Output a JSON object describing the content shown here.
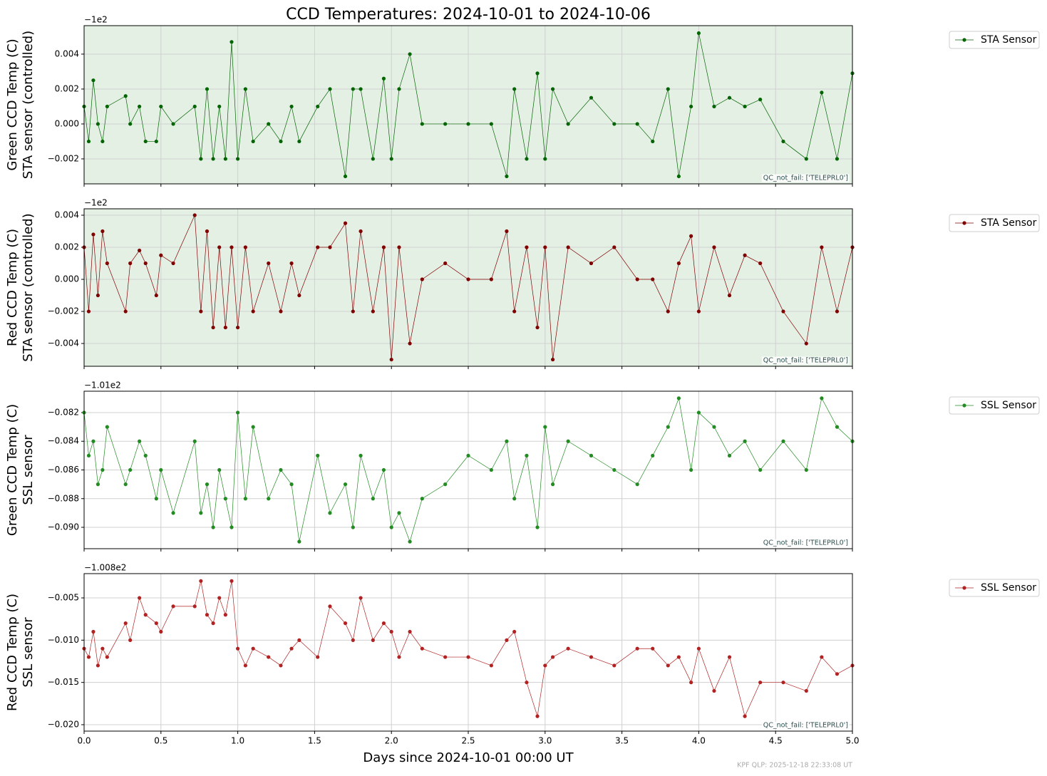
{
  "title": "CCD Temperatures: 2024-10-01 to 2024-10-06",
  "footer": "KPF QLP: 2025-12-18 22:33:08 UT",
  "chart_data": [
    {
      "type": "line",
      "ylabel": [
        "Green CCD Temp (C)",
        "STA sensor (controlled)"
      ],
      "y_offset_label": "−1e2",
      "annotation": "QC_not_fail: ['TELEPRL0']",
      "facecolor": "#e5f0e5",
      "grid": true,
      "legend": "outside-right",
      "x": [
        0.0,
        0.03,
        0.06,
        0.09,
        0.12,
        0.15,
        0.27,
        0.3,
        0.36,
        0.4,
        0.47,
        0.5,
        0.58,
        0.72,
        0.76,
        0.8,
        0.84,
        0.88,
        0.92,
        0.96,
        1.0,
        1.05,
        1.1,
        1.2,
        1.28,
        1.35,
        1.4,
        1.52,
        1.6,
        1.7,
        1.75,
        1.8,
        1.88,
        1.95,
        2.0,
        2.05,
        2.12,
        2.2,
        2.35,
        2.5,
        2.65,
        2.75,
        2.8,
        2.88,
        2.95,
        3.0,
        3.05,
        3.15,
        3.3,
        3.45,
        3.6,
        3.7,
        3.8,
        3.87,
        3.95,
        4.0,
        4.1,
        4.2,
        4.3,
        4.4,
        4.55,
        4.7,
        4.8,
        4.9,
        5.0
      ],
      "series": [
        {
          "name": "STA Sensor",
          "color": "#006400",
          "values": [
            0.001,
            -0.001,
            0.0025,
            0,
            -0.001,
            0.001,
            0.0016,
            0,
            0.001,
            -0.001,
            -0.001,
            0.001,
            0,
            0.001,
            -0.002,
            0.002,
            -0.002,
            0.001,
            -0.002,
            0.0047,
            -0.002,
            0.002,
            -0.001,
            0,
            -0.001,
            0.001,
            -0.001,
            0.001,
            0.002,
            -0.003,
            0.002,
            0.002,
            -0.002,
            0.0026,
            -0.002,
            0.002,
            0.004,
            0,
            0,
            0,
            0,
            -0.003,
            0.002,
            -0.002,
            0.0029,
            -0.002,
            0.002,
            0,
            0.0015,
            0,
            0,
            -0.001,
            0.002,
            -0.003,
            0.001,
            0.0052,
            0.001,
            0.0015,
            0.001,
            0.0014,
            -0.001,
            -0.002,
            0.0018,
            -0.002,
            0.0029
          ]
        }
      ],
      "ylim": [
        -0.00343,
        0.00563
      ],
      "yticks": [
        {
          "value": -0.002,
          "label": "−0.002"
        },
        {
          "value": 0,
          "label": "0.000"
        },
        0.002,
        0.004
      ]
    },
    {
      "type": "line",
      "ylabel": [
        "Red CCD Temp (C)",
        "STA sensor (controlled)"
      ],
      "y_offset_label": "−1e2",
      "annotation": "QC_not_fail: ['TELEPRL0']",
      "facecolor": "#e5f0e5",
      "grid": true,
      "legend": "outside-right",
      "x": [
        0.0,
        0.03,
        0.06,
        0.09,
        0.12,
        0.15,
        0.27,
        0.3,
        0.36,
        0.4,
        0.47,
        0.5,
        0.58,
        0.72,
        0.76,
        0.8,
        0.84,
        0.88,
        0.92,
        0.96,
        1.0,
        1.05,
        1.1,
        1.2,
        1.28,
        1.35,
        1.4,
        1.52,
        1.6,
        1.7,
        1.75,
        1.8,
        1.88,
        1.95,
        2.0,
        2.05,
        2.12,
        2.2,
        2.35,
        2.5,
        2.65,
        2.75,
        2.8,
        2.88,
        2.95,
        3.0,
        3.05,
        3.15,
        3.3,
        3.45,
        3.6,
        3.7,
        3.8,
        3.87,
        3.95,
        4.0,
        4.1,
        4.2,
        4.3,
        4.4,
        4.55,
        4.7,
        4.8,
        4.9,
        5.0
      ],
      "series": [
        {
          "name": "STA Sensor",
          "color": "#800000",
          "values": [
            0.002,
            -0.002,
            0.0028,
            -0.001,
            0.003,
            0.001,
            -0.002,
            0.001,
            0.0018,
            0.001,
            -0.001,
            0.0015,
            0.001,
            0.004,
            -0.002,
            0.003,
            -0.003,
            0.002,
            -0.003,
            0.002,
            -0.003,
            0.002,
            -0.002,
            0.001,
            -0.002,
            0.001,
            -0.001,
            0.002,
            0.002,
            0.0035,
            -0.002,
            0.003,
            -0.002,
            0.002,
            -0.005,
            0.002,
            -0.004,
            0,
            0.001,
            0,
            0,
            0.003,
            -0.002,
            0.002,
            -0.003,
            0.002,
            -0.005,
            0.002,
            0.001,
            0.002,
            0,
            0,
            -0.002,
            0.001,
            0.0027,
            -0.002,
            0.002,
            -0.001,
            0.0015,
            0.001,
            -0.002,
            -0.004,
            0.002,
            -0.002,
            0.002
          ]
        }
      ],
      "ylim": [
        -0.00542,
        0.0044
      ],
      "yticks": [
        {
          "value": -0.004,
          "label": "−0.004"
        },
        {
          "value": -0.002,
          "label": "−0.002"
        },
        {
          "value": 0,
          "label": "0.000"
        },
        0.002,
        0.004
      ]
    },
    {
      "type": "line",
      "ylabel": [
        "Green CCD Temp (C)",
        "SSL sensor"
      ],
      "y_offset_label": "−1.01e2",
      "annotation": "QC_not_fail: ['TELEPRL0']",
      "grid": true,
      "legend": "outside-right",
      "x": [
        0.0,
        0.03,
        0.06,
        0.09,
        0.12,
        0.15,
        0.27,
        0.3,
        0.36,
        0.4,
        0.47,
        0.5,
        0.58,
        0.72,
        0.76,
        0.8,
        0.84,
        0.88,
        0.92,
        0.96,
        1.0,
        1.05,
        1.1,
        1.2,
        1.28,
        1.35,
        1.4,
        1.52,
        1.6,
        1.7,
        1.75,
        1.8,
        1.88,
        1.95,
        2.0,
        2.05,
        2.12,
        2.2,
        2.35,
        2.5,
        2.65,
        2.75,
        2.8,
        2.88,
        2.95,
        3.0,
        3.05,
        3.15,
        3.3,
        3.45,
        3.6,
        3.7,
        3.8,
        3.87,
        3.95,
        4.0,
        4.1,
        4.2,
        4.3,
        4.4,
        4.55,
        4.7,
        4.8,
        4.9,
        5.0
      ],
      "series": [
        {
          "name": "SSL Sensor",
          "color": "#228b22",
          "values": [
            -0.082,
            -0.085,
            -0.084,
            -0.087,
            -0.086,
            -0.083,
            -0.087,
            -0.086,
            -0.084,
            -0.085,
            -0.088,
            -0.086,
            -0.089,
            -0.084,
            -0.089,
            -0.087,
            -0.09,
            -0.086,
            -0.088,
            -0.09,
            -0.082,
            -0.088,
            -0.083,
            -0.088,
            -0.086,
            -0.087,
            -0.091,
            -0.085,
            -0.089,
            -0.087,
            -0.09,
            -0.085,
            -0.088,
            -0.086,
            -0.09,
            -0.089,
            -0.091,
            -0.088,
            -0.087,
            -0.085,
            -0.086,
            -0.084,
            -0.088,
            -0.085,
            -0.09,
            -0.083,
            -0.087,
            -0.084,
            -0.085,
            -0.086,
            -0.087,
            -0.085,
            -0.083,
            -0.081,
            -0.086,
            -0.082,
            -0.083,
            -0.085,
            -0.084,
            -0.086,
            -0.084,
            -0.086,
            -0.081,
            -0.083,
            -0.084
          ]
        }
      ],
      "ylim": [
        -0.09149,
        -0.08051
      ],
      "yticks": [
        {
          "value": -0.09,
          "label": "−0.090"
        },
        {
          "value": -0.088,
          "label": "−0.088"
        },
        {
          "value": -0.086,
          "label": "−0.086"
        },
        {
          "value": -0.084,
          "label": "−0.084"
        },
        {
          "value": -0.082,
          "label": "−0.082"
        }
      ]
    },
    {
      "type": "line",
      "ylabel": [
        "Red CCD Temp (C)",
        "SSL sensor"
      ],
      "y_offset_label": "−1.008e2",
      "annotation": "QC_not_fail: ['TELEPRL0']",
      "grid": true,
      "legend": "outside-right",
      "x_label": "Days since 2024-10-01 00:00 UT",
      "x": [
        0.0,
        0.03,
        0.06,
        0.09,
        0.12,
        0.15,
        0.27,
        0.3,
        0.36,
        0.4,
        0.47,
        0.5,
        0.58,
        0.72,
        0.76,
        0.8,
        0.84,
        0.88,
        0.92,
        0.96,
        1.0,
        1.05,
        1.1,
        1.2,
        1.28,
        1.35,
        1.4,
        1.52,
        1.6,
        1.7,
        1.75,
        1.8,
        1.88,
        1.95,
        2.0,
        2.05,
        2.12,
        2.2,
        2.35,
        2.5,
        2.65,
        2.75,
        2.8,
        2.88,
        2.95,
        3.0,
        3.05,
        3.15,
        3.3,
        3.45,
        3.6,
        3.7,
        3.8,
        3.87,
        3.95,
        4.0,
        4.1,
        4.2,
        4.3,
        4.4,
        4.55,
        4.7,
        4.8,
        4.9,
        5.0
      ],
      "series": [
        {
          "name": "SSL Sensor",
          "color": "#b22222",
          "values": [
            -0.011,
            -0.012,
            -0.009,
            -0.013,
            -0.011,
            -0.012,
            -0.008,
            -0.01,
            -0.005,
            -0.007,
            -0.008,
            -0.009,
            -0.006,
            -0.006,
            -0.003,
            -0.007,
            -0.008,
            -0.005,
            -0.007,
            -0.003,
            -0.011,
            -0.013,
            -0.011,
            -0.012,
            -0.013,
            -0.011,
            -0.01,
            -0.012,
            -0.006,
            -0.008,
            -0.01,
            -0.005,
            -0.01,
            -0.008,
            -0.009,
            -0.012,
            -0.009,
            -0.011,
            -0.012,
            -0.012,
            -0.013,
            -0.01,
            -0.009,
            -0.015,
            -0.019,
            -0.013,
            -0.012,
            -0.011,
            -0.012,
            -0.013,
            -0.011,
            -0.011,
            -0.013,
            -0.012,
            -0.015,
            -0.011,
            -0.016,
            -0.012,
            -0.019,
            -0.015,
            -0.015,
            -0.016,
            -0.012,
            -0.014,
            -0.013
          ]
        }
      ],
      "ylim": [
        -0.02076,
        -0.00213
      ],
      "yticks": [
        {
          "value": -0.02,
          "label": "−0.020"
        },
        {
          "value": -0.015,
          "label": "−0.015"
        },
        {
          "value": -0.01,
          "label": "−0.010"
        },
        {
          "value": -0.005,
          "label": "−0.005"
        }
      ],
      "xlim": [
        0,
        5
      ],
      "xticks": [
        {
          "value": 0,
          "label": "0.0"
        },
        0.5,
        {
          "value": 1,
          "label": "1.0"
        },
        1.5,
        {
          "value": 2,
          "label": "2.0"
        },
        2.5,
        {
          "value": 3,
          "label": "3.0"
        },
        3.5,
        {
          "value": 4,
          "label": "4.0"
        },
        4.5,
        {
          "value": 5,
          "label": "5.0"
        }
      ]
    }
  ]
}
